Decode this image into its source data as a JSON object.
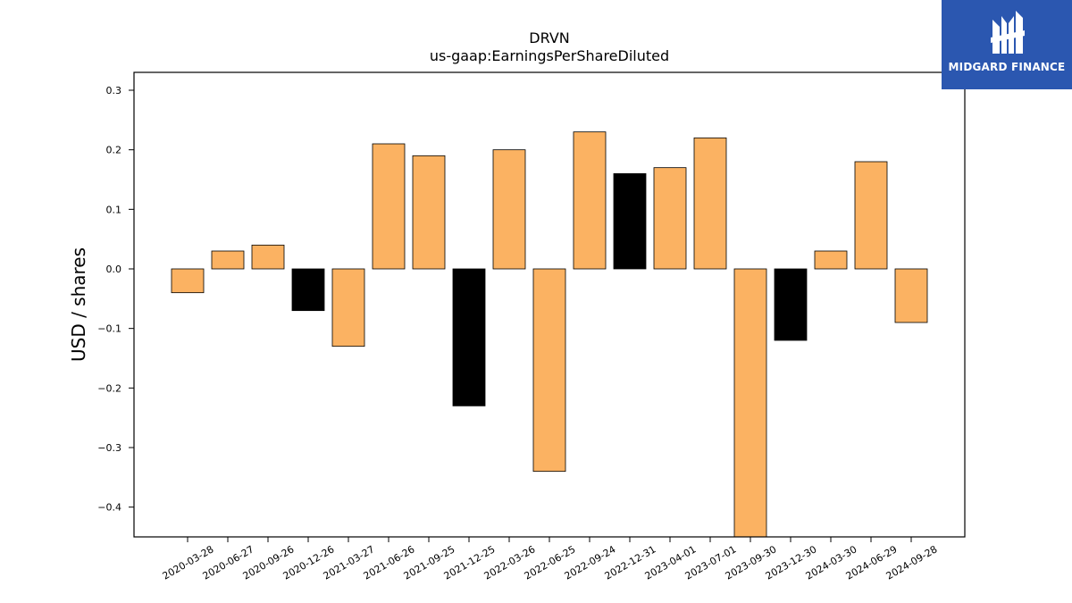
{
  "logo": {
    "text": "MIDGARD FINANCE"
  },
  "chart_data": {
    "type": "bar",
    "title": "DRVN",
    "subtitle": "us-gaap:EarningsPerShareDiluted",
    "xlabel": "",
    "ylabel": "USD / shares",
    "ylim": [
      -0.45,
      0.33
    ],
    "yticks": [
      -0.4,
      -0.3,
      -0.2,
      -0.1,
      0.0,
      0.1,
      0.2,
      0.3
    ],
    "ytick_labels": [
      "−0.4",
      "−0.3",
      "−0.2",
      "−0.1",
      "0.0",
      "0.1",
      "0.2",
      "0.3"
    ],
    "grid": false,
    "categories": [
      "2020-03-28",
      "2020-06-27",
      "2020-09-26",
      "2020-12-26",
      "2021-03-27",
      "2021-06-26",
      "2021-09-25",
      "2021-12-25",
      "2022-03-26",
      "2022-06-25",
      "2022-09-24",
      "2022-12-31",
      "2023-04-01",
      "2023-07-01",
      "2023-09-30",
      "2023-12-30",
      "2024-03-30",
      "2024-06-29",
      "2024-09-28"
    ],
    "values": [
      -0.04,
      0.03,
      0.04,
      -0.07,
      -0.13,
      0.21,
      0.19,
      -0.23,
      0.2,
      -0.34,
      0.23,
      0.16,
      0.17,
      0.22,
      -0.45,
      -0.12,
      0.03,
      0.18,
      -0.09
    ],
    "bar_colors": [
      "#fbb262",
      "#fbb262",
      "#fbb262",
      "#000000",
      "#fbb262",
      "#fbb262",
      "#fbb262",
      "#000000",
      "#fbb262",
      "#fbb262",
      "#fbb262",
      "#000000",
      "#fbb262",
      "#fbb262",
      "#fbb262",
      "#000000",
      "#fbb262",
      "#fbb262",
      "#fbb262"
    ]
  }
}
